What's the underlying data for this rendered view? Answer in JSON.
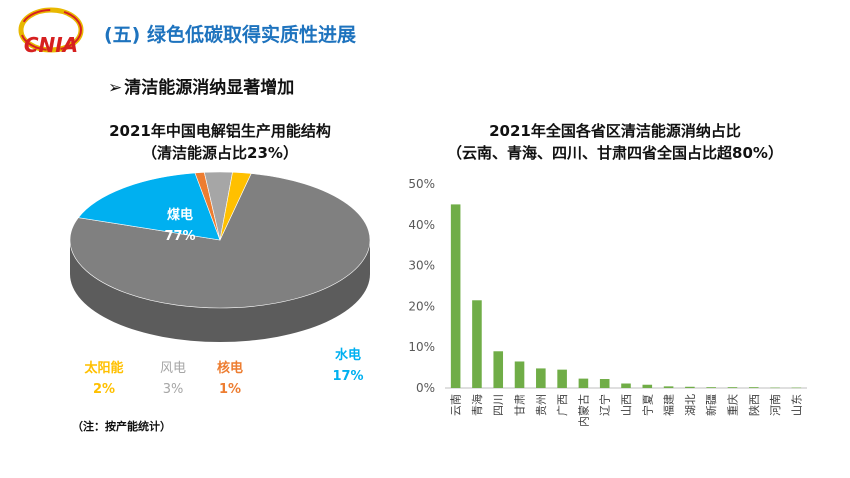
{
  "logo": {
    "text": "CNIA"
  },
  "header": {
    "title": "(五) 绿色低碳取得实质性进展"
  },
  "section": {
    "arrow": "➢",
    "subtitle": "清洁能源消纳显著增加"
  },
  "note": "（注：按产能统计）",
  "colors": {
    "title_blue": "#1e73be",
    "coal": "#808080",
    "hydro": "#00b0f0",
    "solar": "#ffc000",
    "wind": "#a6a6a6",
    "nuclear": "#ed7d31",
    "bar_green": "#70ad47"
  },
  "chart_data": [
    {
      "type": "pie",
      "title": "2021年中国电解铝生产用能结构",
      "subtitle": "（清洁能源占比23%）",
      "slices": [
        {
          "label": "煤电",
          "value": 77,
          "display": "77%",
          "color": "#808080"
        },
        {
          "label": "水电",
          "value": 17,
          "display": "17%",
          "color": "#00b0f0"
        },
        {
          "label": "核电",
          "value": 1,
          "display": "1%",
          "color": "#ed7d31"
        },
        {
          "label": "风电",
          "value": 3,
          "display": "3%",
          "color": "#a6a6a6"
        },
        {
          "label": "太阳能",
          "value": 2,
          "display": "2%",
          "color": "#ffc000"
        }
      ]
    },
    {
      "type": "bar",
      "title": "2021年全国各省区清洁能源消纳占比",
      "subtitle": "（云南、青海、四川、甘肃四省全国占比超80%）",
      "categories": [
        "云南",
        "青海",
        "四川",
        "甘肃",
        "贵州",
        "广西",
        "内蒙古",
        "辽宁",
        "山西",
        "宁夏",
        "福建",
        "湖北",
        "新疆",
        "重庆",
        "陕西",
        "河南",
        "山东"
      ],
      "values": [
        45,
        21.5,
        9,
        6.5,
        4.8,
        4.5,
        2.3,
        2.2,
        1.1,
        0.8,
        0.4,
        0.3,
        0.2,
        0.2,
        0.2,
        0.1,
        0.1
      ],
      "ylim": [
        0,
        50
      ],
      "yticks": [
        "0%",
        "10%",
        "20%",
        "30%",
        "40%",
        "50%"
      ],
      "ytick_values": [
        0,
        10,
        20,
        30,
        40,
        50
      ],
      "color": "#70ad47"
    }
  ]
}
